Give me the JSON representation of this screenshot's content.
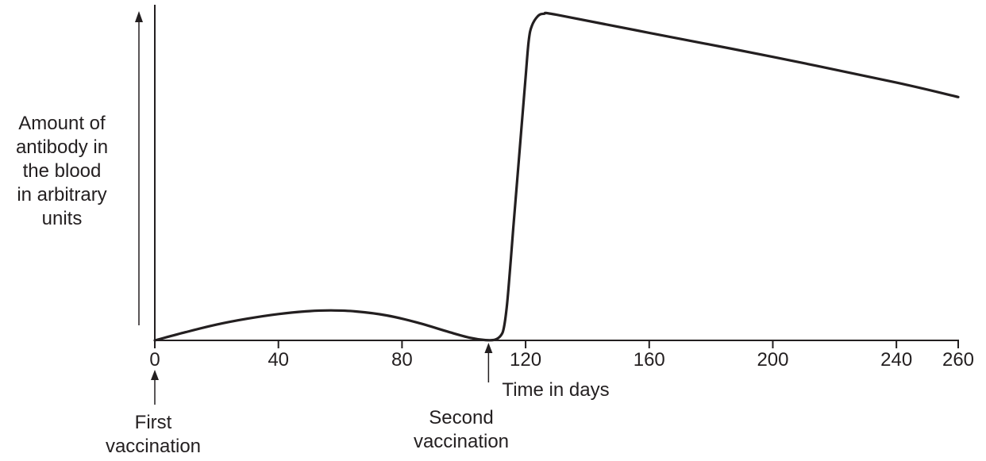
{
  "chart_data": {
    "type": "line",
    "xlabel": "Time in days",
    "ylabel_lines": [
      "Amount of",
      "antibody in",
      "the blood",
      "in arbitrary",
      "units"
    ],
    "xlim": [
      0,
      260
    ],
    "ylim": [
      0,
      100
    ],
    "x_ticks": [
      0,
      40,
      80,
      120,
      160,
      200,
      240,
      260
    ],
    "grid": false,
    "series": [
      {
        "x": [
          0,
          10,
          20,
          30,
          40,
          50,
          57,
          65,
          75,
          85,
          95,
          102,
          107,
          110,
          112,
          113,
          114,
          115,
          116,
          118,
          120,
          121,
          122,
          124,
          126,
          130,
          160,
          200,
          240,
          260
        ],
        "y": [
          0,
          2.5,
          4.8,
          6.6,
          8.0,
          8.9,
          9.1,
          8.8,
          7.6,
          5.4,
          2.6,
          0.8,
          0.1,
          0.2,
          1.5,
          4.0,
          11.0,
          22.0,
          34.0,
          57.0,
          80.0,
          91.0,
          95.5,
          98.5,
          99.2,
          98.9,
          93.4,
          86.1,
          78.3,
          73.9
        ]
      }
    ],
    "annotations": [
      {
        "x": 0,
        "lines": [
          "First",
          "vaccination"
        ]
      },
      {
        "x": 108,
        "lines": [
          "Second",
          "vaccination"
        ]
      }
    ]
  }
}
